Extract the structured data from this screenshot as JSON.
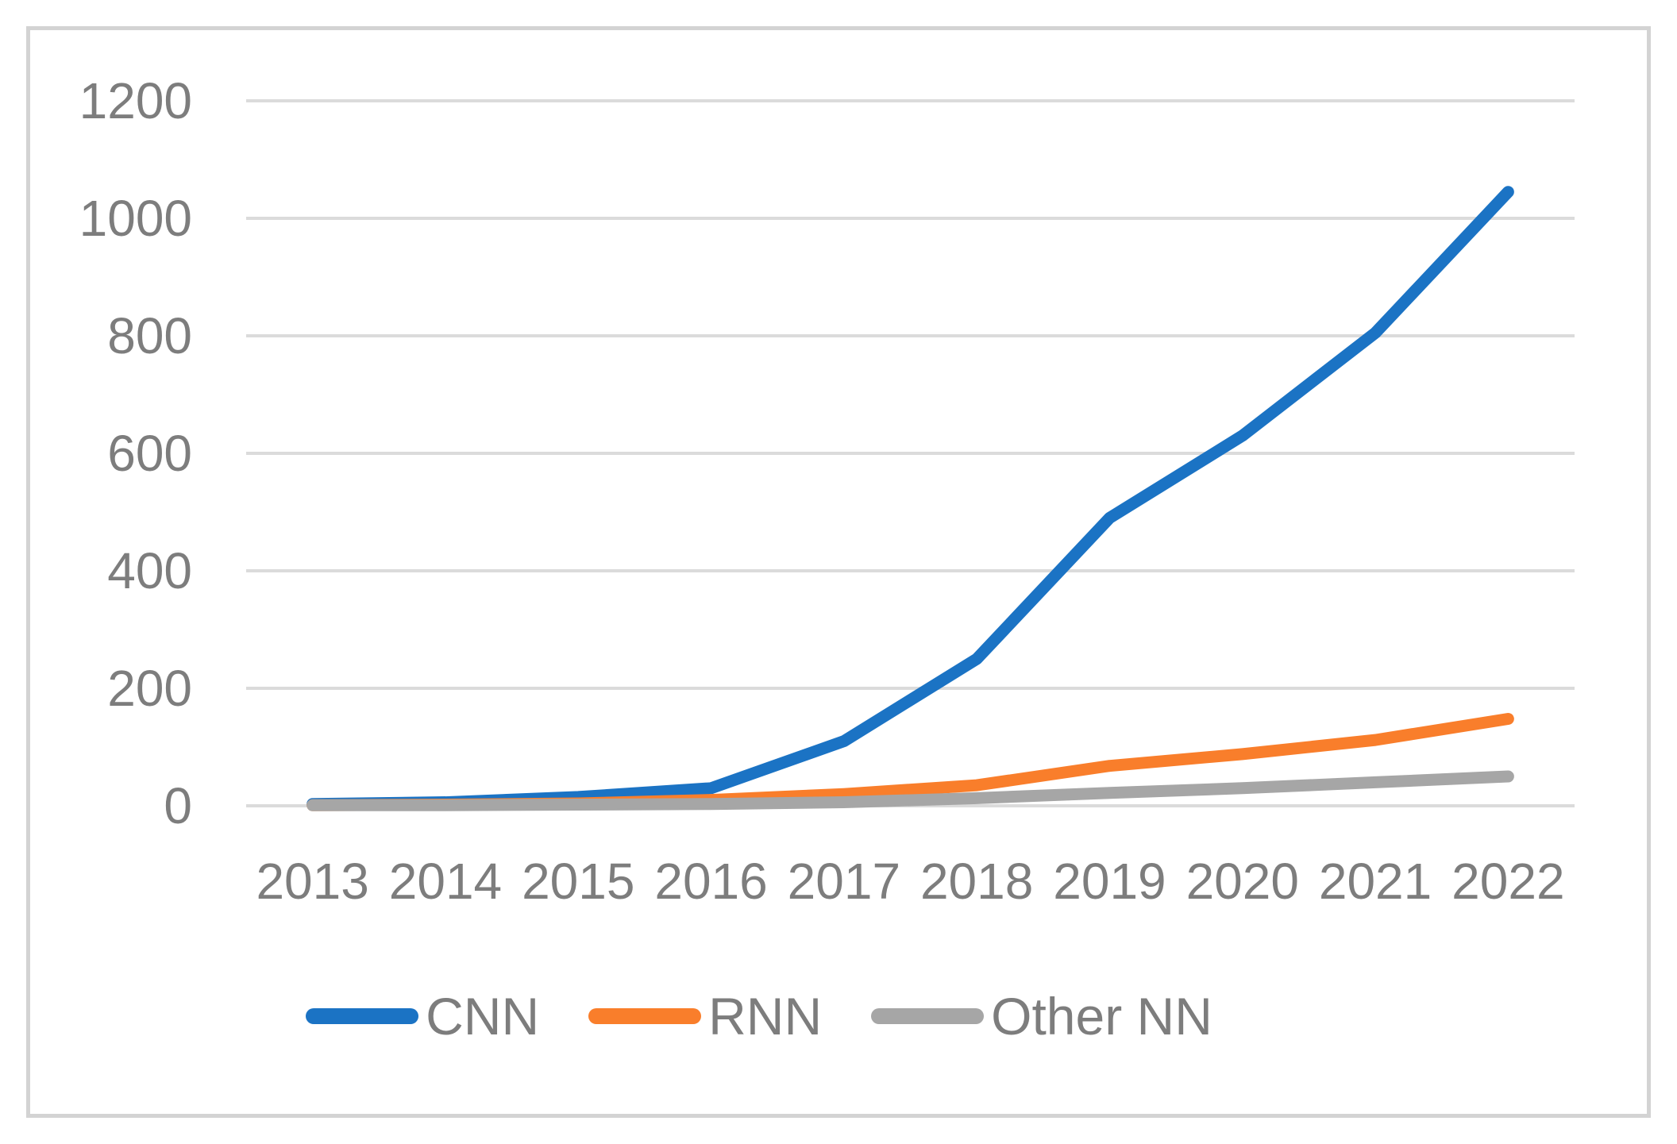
{
  "chart_data": {
    "type": "line",
    "title": "",
    "xlabel": "",
    "ylabel": "",
    "categories": [
      "2013",
      "2014",
      "2015",
      "2016",
      "2017",
      "2018",
      "2019",
      "2020",
      "2021",
      "2022"
    ],
    "series": [
      {
        "name": "CNN",
        "color": "#1b73c4",
        "values": [
          3,
          6,
          15,
          30,
          110,
          250,
          490,
          630,
          805,
          1045
        ]
      },
      {
        "name": "RNN",
        "color": "#f97e2b",
        "values": [
          1,
          2,
          4,
          10,
          20,
          35,
          68,
          88,
          112,
          148
        ]
      },
      {
        "name": "Other NN",
        "color": "#a6a6a6",
        "values": [
          1,
          1,
          2,
          3,
          6,
          13,
          22,
          30,
          40,
          50
        ]
      }
    ],
    "y_ticks": [
      0,
      200,
      400,
      600,
      800,
      1000,
      1200
    ],
    "ylim": [
      0,
      1200
    ],
    "grid": "horizontal-only",
    "legend_position": "bottom",
    "colors": {
      "axis_text": "#7d7d7d",
      "gridline": "#dbdbdb",
      "frame_border": "#d3d3d3",
      "background": "#ffffff"
    }
  }
}
